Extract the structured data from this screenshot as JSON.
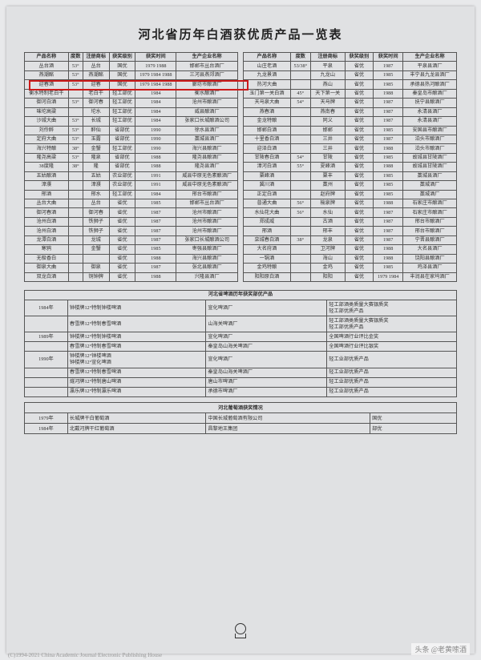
{
  "title": "河北省历年白酒获优质产品一览表",
  "headers": [
    "产品名称",
    "度数",
    "注册商标",
    "获奖级别",
    "获奖时间",
    "生产企业名称"
  ],
  "left_rows": [
    [
      "丛台酒",
      "53°",
      "丛台",
      "国优",
      "1979 1988",
      "邯郸市丛台酒厂"
    ],
    [
      "燕潮酩",
      "53°",
      "燕潮酩",
      "国优",
      "1979 1984 1988",
      "三河县燕郊酒厂"
    ],
    [
      "迎春酒",
      "53°",
      "迎春",
      "国优",
      "1979 1984 1988",
      "廊坊市酿酒厂"
    ],
    [
      "衡水特制老白干",
      "",
      "老白干",
      "轻工部优",
      "1984",
      "衡水酿酒厂"
    ],
    [
      "御河白酒",
      "53°",
      "御河春",
      "轻工部优",
      "1984",
      "沧州市酿酒厂"
    ],
    [
      "味坨高粱",
      "",
      "坨水",
      "轻工部优",
      "1984",
      "威县酿酒厂"
    ],
    [
      "沙城大曲",
      "53°",
      "长城",
      "轻工部优",
      "1984",
      "张家口长城酿酒公司"
    ],
    [
      "刘伶醉",
      "53°",
      "醉仙",
      "省部优",
      "1990",
      "徐水县酒厂"
    ],
    [
      "定府大曲",
      "53°",
      "玉露",
      "省部优",
      "1990",
      "藁城县酒厂"
    ],
    [
      "海兴特酿",
      "38°",
      "金蟹",
      "轻工部优",
      "1990",
      "海兴县酿酒厂"
    ],
    [
      "隆尧高粱",
      "53°",
      "隆泉",
      "省部优",
      "1988",
      "隆尧县酿酒厂"
    ],
    [
      "38度隆",
      "38°",
      "隆",
      "省部优",
      "1988",
      "隆尧县酒厂"
    ],
    [
      "五姑酿酒",
      "",
      "五姑",
      "农业部优",
      "1991",
      "威县中原无色素酿酒厂"
    ],
    [
      "漳濮",
      "",
      "漳濮",
      "农业部优",
      "1991",
      "威县中原无色素酿酒厂"
    ],
    [
      "邢酒",
      "",
      "邢水",
      "轻工部优",
      "1984",
      "邢台市酿酒厂"
    ],
    [
      "丛台大曲",
      "",
      "丛台",
      "省优",
      "1985",
      "邯郸市丛台酒厂"
    ],
    [
      "御河春酒",
      "",
      "御河春",
      "省优",
      "1987",
      "沧州市酿酒厂"
    ],
    [
      "沧州白酒",
      "",
      "铁狮子",
      "省优",
      "1987",
      "沧州市酿酒厂"
    ],
    [
      "沧州白酒",
      "",
      "铁狮子",
      "省优",
      "1987",
      "沧州市酿酒厂"
    ],
    [
      "龙潭白酒",
      "",
      "龙城",
      "省优",
      "1987",
      "张家口长城酿酒公司"
    ],
    [
      "寒鸦",
      "",
      "金蟹",
      "省优",
      "1985",
      "枣强县酿酒厂"
    ],
    [
      "无极香白",
      "",
      "",
      "省优",
      "1988",
      "海兴县酿酒厂"
    ],
    [
      "御泉大曲",
      "",
      "御泉",
      "省优",
      "1987",
      "张北县酿酒厂"
    ],
    [
      "双龙白酒",
      "",
      "铜钟牌",
      "省优",
      "1988",
      "兴隆县酒厂"
    ]
  ],
  "right_rows": [
    [
      "山庄老酒",
      "53/38°",
      "平泉",
      "省优",
      "1987",
      "平泉县酒厂"
    ],
    [
      "九龙景酒",
      "",
      "九龙山",
      "省优",
      "1985",
      "丰宁县九龙县酒厂"
    ],
    [
      "热河大曲",
      "",
      "燕山",
      "省优",
      "1985",
      "承德县热河酿酒厂"
    ],
    [
      "玉门第一关白酒",
      "45°",
      "天下第一关",
      "省优",
      "1988",
      "秦皇岛市酿酒厂"
    ],
    [
      "天马泉大曲",
      "54°",
      "天马牌",
      "省优",
      "1987",
      "抚宁县酿酒厂"
    ],
    [
      "燕春酒",
      "",
      "燕南春",
      "省优",
      "1987",
      "永清县酒厂"
    ],
    [
      "金龙特酿",
      "",
      "同义",
      "省优",
      "1987",
      "永清县酒厂"
    ],
    [
      "邯郸白酒",
      "",
      "邯郸",
      "省优",
      "1985",
      "安国县市酿酒厂"
    ],
    [
      "十里香白酒",
      "",
      "三井",
      "省优",
      "1987",
      "泊头市酿酒厂"
    ],
    [
      "迎泽白酒",
      "",
      "三井",
      "省优",
      "1988",
      "泊头市酿酒厂"
    ],
    [
      "甘陵春白酒",
      "54°",
      "甘陵",
      "省优",
      "1985",
      "故城县甘陵酒厂"
    ],
    [
      "漳河白酒",
      "55°",
      "夏峰酒",
      "省优",
      "1988",
      "故城县甘陵酒厂"
    ],
    [
      "粟峰酒",
      "",
      "粟丰",
      "省优",
      "1985",
      "藁城县酒厂"
    ],
    [
      "冀川酒",
      "",
      "藁州",
      "省优",
      "1985",
      "藁城酒厂"
    ],
    [
      "正定白酒",
      "",
      "赵府牌",
      "省优",
      "1985",
      "藁城酒厂"
    ],
    [
      "普通大曲",
      "56°",
      "榆泉牌",
      "省优",
      "1988",
      "石家庄市酿酒厂"
    ],
    [
      "水仙花大曲",
      "56°",
      "水仙",
      "省优",
      "1987",
      "石家庄市酿酒厂"
    ],
    [
      "郑成威",
      "",
      "古酒",
      "省优",
      "1987",
      "邢台市酿酒厂"
    ],
    [
      "邢酒",
      "",
      "邢丰",
      "省优",
      "1987",
      "邢台市酿酒厂"
    ],
    [
      "栾城春白酒",
      "38°",
      "龙泉",
      "省优",
      "1987",
      "宁晋县酿酒厂"
    ],
    [
      "大名府酒",
      "",
      "卫河牌",
      "省优",
      "1988",
      "大名县酒厂"
    ],
    [
      "一锅酒",
      "",
      "海山",
      "省优",
      "1988",
      "饶阳县酿酒厂"
    ],
    [
      "金鸡特酿",
      "",
      "金鸡",
      "省优",
      "1985",
      "鸡泽县酒厂"
    ],
    [
      "阳阳原白酒",
      "",
      "阳阳",
      "省优",
      "1979 1984",
      "丰润县在家坞酒厂"
    ]
  ],
  "section2_title": "河北省啤酒历年获奖部优产品",
  "section2_rows": [
    [
      "1984年",
      "钟楼牌12°特制钟楼啤酒",
      "宣化啤酒厂",
      "轻工部酒类质量大赛银质奖\n轻工部优质产品"
    ],
    [
      "",
      "春雪牌12°特制春雪啤酒",
      "山海关啤酒厂",
      "轻工部酒类质量大赛银质奖\n轻工部优质产品"
    ],
    [
      "1989年",
      "钟楼牌12°特制钟楼啤酒",
      "宣化啤酒厂",
      "全国啤酒行业评比金奖"
    ],
    [
      "",
      "春雪牌12°特制春雪啤酒",
      "秦皇岛山海关啤酒厂",
      "全国啤酒行业评比银奖"
    ],
    [
      "1990年",
      "钟楼牌12°钟楼啤酒\n钟楼牌12°宣化啤酒",
      "宣化啤酒厂",
      "轻工业部优质产品"
    ],
    [
      "",
      "春雪牌12°特制春雪啤酒",
      "秦皇岛山海关啤酒厂",
      "轻工业部优质产品"
    ],
    [
      "",
      "燧河牌12°特制唐山啤酒",
      "唐山市啤酒厂",
      "轻工业部优质产品"
    ],
    [
      "",
      "瀛乐牌12°特制瀛乐啤酒",
      "承德市啤酒厂",
      "轻工业部优质产品"
    ]
  ],
  "section3_title": "河北葡萄酒获奖情况",
  "section3_rows": [
    [
      "1979年",
      "长城牌干白葡萄酒",
      "中国长城葡萄酒有限公司",
      "国优"
    ],
    [
      "1984年",
      "北戴河牌干红葡萄酒",
      "昌黎地王集团",
      "部优"
    ]
  ],
  "watermark": "头条 @老黄嗦酒",
  "copyright": "(C)1994-2021 China Academic Journal Electronic Publishing House"
}
